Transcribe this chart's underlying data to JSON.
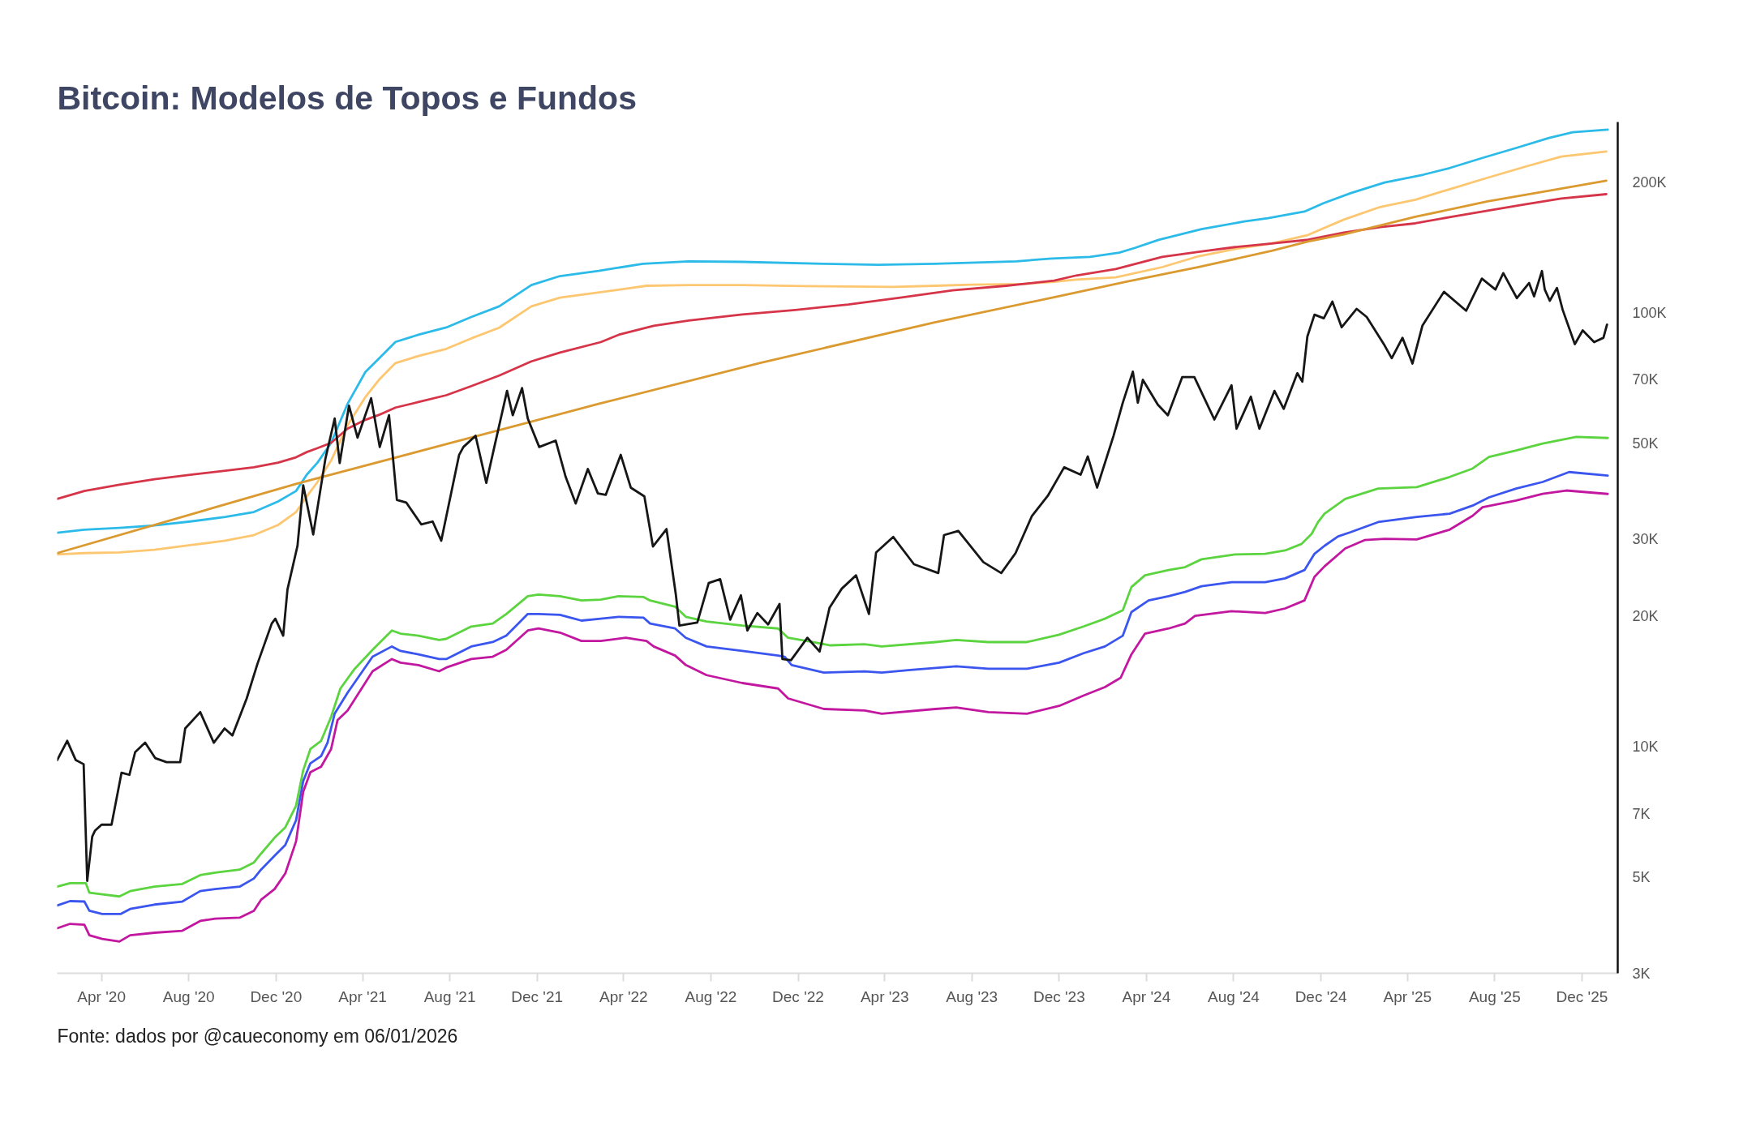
{
  "chart_data": {
    "type": "line",
    "title": "Bitcoin: Modelos de Topos e Fundos",
    "annotations": [
      "Fonte: dados por @caueconomy em 06/01/2026"
    ],
    "log": "y",
    "xlim": [
      "2020-01-30",
      "2026-01-20"
    ],
    "xticks": [
      {
        "value": "2020-04-01",
        "label": "Apr '20"
      },
      {
        "value": "2020-08-01",
        "label": "Aug '20"
      },
      {
        "value": "2020-12-01",
        "label": "Dec '20"
      },
      {
        "value": "2021-04-01",
        "label": "Apr '21"
      },
      {
        "value": "2021-08-01",
        "label": "Aug '21"
      },
      {
        "value": "2021-12-01",
        "label": "Dec '21"
      },
      {
        "value": "2022-04-01",
        "label": "Apr '22"
      },
      {
        "value": "2022-08-01",
        "label": "Aug '22"
      },
      {
        "value": "2022-12-01",
        "label": "Dec '22"
      },
      {
        "value": "2023-04-01",
        "label": "Apr '23"
      },
      {
        "value": "2023-08-01",
        "label": "Aug '23"
      },
      {
        "value": "2023-12-01",
        "label": "Dec '23"
      },
      {
        "value": "2024-04-01",
        "label": "Apr '24"
      },
      {
        "value": "2024-08-01",
        "label": "Aug '24"
      },
      {
        "value": "2024-12-01",
        "label": "Dec '24"
      },
      {
        "value": "2025-04-01",
        "label": "Apr '25"
      },
      {
        "value": "2025-08-01",
        "label": "Aug '25"
      },
      {
        "value": "2025-12-01",
        "label": "Dec '25"
      }
    ],
    "ylim": [
      3000,
      275000
    ],
    "yticks": [
      {
        "value": 3000,
        "label": "3K"
      },
      {
        "value": 5000,
        "label": "5K"
      },
      {
        "value": 7000,
        "label": "7K"
      },
      {
        "value": 10000,
        "label": "10K"
      },
      {
        "value": 20000,
        "label": "20K"
      },
      {
        "value": 30000,
        "label": "30K"
      },
      {
        "value": 50000,
        "label": "50K"
      },
      {
        "value": 70000,
        "label": "70K"
      },
      {
        "value": 100000,
        "label": "100K"
      },
      {
        "value": 200000,
        "label": "200K"
      }
    ],
    "series": [
      {
        "color": "#2cbbe8",
        "x": [
          "2020-01-30",
          "2020-03-08",
          "2020-04-26",
          "2020-06-14",
          "2020-08-03",
          "2020-09-21",
          "2020-10-31",
          "2020-12-04",
          "2020-12-29",
          "2021-01-13",
          "2021-01-28",
          "2021-02-16",
          "2021-03-11",
          "2021-04-05",
          "2021-04-25",
          "2021-05-17",
          "2021-06-18",
          "2021-07-27",
          "2021-08-31",
          "2021-10-09",
          "2021-11-23",
          "2022-01-02",
          "2022-02-25",
          "2022-04-28",
          "2022-07-01",
          "2022-09-14",
          "2023-01-05",
          "2023-03-23",
          "2023-06-10",
          "2023-10-02",
          "2023-11-21",
          "2024-01-13",
          "2024-02-23",
          "2024-03-16",
          "2024-04-18",
          "2024-06-17",
          "2024-08-16",
          "2024-09-18",
          "2024-11-08",
          "2024-12-05",
          "2025-01-12",
          "2025-02-28",
          "2025-04-23",
          "2025-05-30",
          "2025-07-15",
          "2025-08-31",
          "2025-10-16",
          "2025-11-18",
          "2026-01-06"
        ],
        "values": [
          31100,
          31600,
          31900,
          32300,
          33000,
          33800,
          34700,
          36700,
          38800,
          42300,
          45100,
          50100,
          61600,
          73000,
          78700,
          85600,
          88900,
          92400,
          97700,
          103400,
          115700,
          121400,
          124800,
          129600,
          131300,
          130900,
          129600,
          128900,
          129600,
          131300,
          133300,
          134400,
          137500,
          141000,
          147100,
          155700,
          162200,
          165100,
          171000,
          178800,
          188600,
          199500,
          207900,
          215400,
          227300,
          239600,
          252700,
          260400,
          264200
        ]
      },
      {
        "color": "#fdc771",
        "x": [
          "2020-01-30",
          "2020-03-08",
          "2020-04-26",
          "2020-06-14",
          "2020-08-03",
          "2020-09-21",
          "2020-10-31",
          "2020-12-04",
          "2020-12-29",
          "2021-01-13",
          "2021-01-28",
          "2021-02-16",
          "2021-03-11",
          "2021-04-05",
          "2021-04-25",
          "2021-05-17",
          "2021-06-18",
          "2021-07-27",
          "2021-08-31",
          "2021-10-09",
          "2021-11-23",
          "2022-01-02",
          "2022-02-28",
          "2022-03-25",
          "2022-05-03",
          "2022-07-01",
          "2022-09-14",
          "2022-12-07",
          "2023-04-13",
          "2023-06-10",
          "2023-07-30",
          "2023-10-12",
          "2023-11-24",
          "2023-12-25",
          "2024-02-18",
          "2024-04-23",
          "2024-06-13",
          "2024-08-03",
          "2024-09-23",
          "2024-11-13",
          "2025-01-02",
          "2025-02-22",
          "2025-04-12",
          "2025-06-02",
          "2025-07-22",
          "2025-09-12",
          "2025-11-02",
          "2026-01-04"
        ],
        "values": [
          27700,
          27900,
          28000,
          28400,
          29100,
          29800,
          30700,
          32400,
          34700,
          37700,
          40700,
          45600,
          55000,
          63900,
          70300,
          76500,
          79400,
          82500,
          87200,
          92300,
          103400,
          108300,
          111500,
          112900,
          115300,
          115700,
          115700,
          115100,
          114600,
          115300,
          116000,
          116400,
          117800,
          119100,
          120600,
          127300,
          134900,
          140200,
          144300,
          151000,
          163800,
          175200,
          182100,
          193200,
          204600,
          216800,
          229000,
          235200
        ]
      },
      {
        "color": "#d63549",
        "x": [
          "2020-01-30",
          "2020-03-08",
          "2020-04-26",
          "2020-06-14",
          "2020-08-03",
          "2020-09-21",
          "2020-10-31",
          "2020-12-04",
          "2020-12-29",
          "2021-01-13",
          "2021-01-28",
          "2021-02-16",
          "2021-03-11",
          "2021-04-05",
          "2021-04-25",
          "2021-05-17",
          "2021-06-18",
          "2021-07-27",
          "2021-08-31",
          "2021-10-09",
          "2021-11-23",
          "2022-01-02",
          "2022-02-28",
          "2022-03-25",
          "2022-05-13",
          "2022-07-01",
          "2022-09-14",
          "2022-11-27",
          "2023-02-09",
          "2023-04-23",
          "2023-07-05",
          "2023-09-18",
          "2023-11-24",
          "2023-12-25",
          "2024-02-18",
          "2024-04-23",
          "2024-06-13",
          "2024-08-03",
          "2024-09-23",
          "2024-11-13",
          "2025-01-02",
          "2025-02-22",
          "2025-04-12",
          "2025-06-02",
          "2025-07-22",
          "2025-09-12",
          "2025-11-02",
          "2026-01-04"
        ],
        "values": [
          37200,
          38800,
          40100,
          41300,
          42300,
          43200,
          44000,
          45100,
          46400,
          47700,
          48700,
          50100,
          54000,
          56600,
          58200,
          60400,
          62200,
          64500,
          67700,
          71600,
          77200,
          80900,
          85500,
          88900,
          93200,
          95900,
          99000,
          101400,
          104400,
          108300,
          112500,
          115300,
          118500,
          121800,
          126000,
          134400,
          138100,
          141600,
          144300,
          147200,
          153000,
          157500,
          160600,
          166300,
          171800,
          177600,
          183300,
          187500
        ]
      },
      {
        "color": "#db9a30",
        "x": [
          "2020-01-30",
          "2020-12-29",
          "2021-08-01",
          "2022-02-25",
          "2022-10-08",
          "2023-06-10",
          "2023-11-24",
          "2024-03-03",
          "2024-06-13",
          "2024-09-23",
          "2024-11-13",
          "2025-01-02",
          "2025-04-12",
          "2025-07-22",
          "2025-11-02",
          "2026-01-04"
        ],
        "values": [
          27900,
          40300,
          50000,
          61600,
          76500,
          95000,
          108500,
          117800,
          127300,
          138800,
          145800,
          151500,
          166300,
          180400,
          193200,
          201400
        ]
      },
      {
        "color": "#5bd43f",
        "x": [
          "2020-01-30",
          "2020-02-17",
          "2020-03-10",
          "2020-03-15",
          "2020-04-02",
          "2020-04-26",
          "2020-05-11",
          "2020-06-14",
          "2020-07-23",
          "2020-08-17",
          "2020-09-07",
          "2020-10-11",
          "2020-10-31",
          "2020-11-10",
          "2020-11-29",
          "2020-12-14",
          "2020-12-29",
          "2021-01-08",
          "2021-01-18",
          "2021-02-02",
          "2021-02-16",
          "2021-03-01",
          "2021-03-21",
          "2021-04-15",
          "2021-05-12",
          "2021-05-24",
          "2021-06-18",
          "2021-07-17",
          "2021-07-27",
          "2021-08-31",
          "2021-09-30",
          "2021-10-19",
          "2021-11-18",
          "2021-12-03",
          "2022-01-02",
          "2022-02-01",
          "2022-02-28",
          "2022-03-25",
          "2022-04-29",
          "2022-05-08",
          "2022-06-12",
          "2022-06-27",
          "2022-07-26",
          "2022-09-14",
          "2022-11-03",
          "2022-11-17",
          "2022-12-21",
          "2023-01-15",
          "2023-03-04",
          "2023-03-28",
          "2023-06-11",
          "2023-07-10",
          "2023-08-24",
          "2023-10-17",
          "2023-12-01",
          "2024-01-04",
          "2024-02-03",
          "2024-02-28",
          "2024-03-11",
          "2024-03-30",
          "2024-05-02",
          "2024-05-25",
          "2024-06-17",
          "2024-08-03",
          "2024-09-14",
          "2024-10-12",
          "2024-11-04",
          "2024-11-18",
          "2024-11-27",
          "2024-12-06",
          "2025-01-04",
          "2025-02-19",
          "2025-04-14",
          "2025-05-30",
          "2025-07-01",
          "2025-07-24",
          "2025-08-31",
          "2025-10-07",
          "2025-11-23",
          "2026-01-06"
        ],
        "values": [
          4750,
          4840,
          4840,
          4600,
          4560,
          4510,
          4640,
          4750,
          4820,
          5050,
          5120,
          5200,
          5400,
          5660,
          6160,
          6510,
          7300,
          8810,
          9860,
          10300,
          11700,
          13600,
          15100,
          16700,
          18500,
          18200,
          18000,
          17600,
          17700,
          18900,
          19200,
          20200,
          22200,
          22400,
          22200,
          21700,
          21800,
          22200,
          22100,
          21700,
          21000,
          19900,
          19400,
          19000,
          18700,
          17800,
          17400,
          17100,
          17200,
          17000,
          17400,
          17600,
          17400,
          17400,
          18100,
          18900,
          19700,
          20600,
          23300,
          24800,
          25500,
          25900,
          27000,
          27700,
          27800,
          28300,
          29300,
          30900,
          32900,
          34400,
          37200,
          39300,
          39600,
          41800,
          43700,
          46500,
          48100,
          49900,
          51700,
          51400
        ]
      },
      {
        "color": "#3b56ee",
        "x": [
          "2020-01-30",
          "2020-02-17",
          "2020-03-08",
          "2020-03-15",
          "2020-04-02",
          "2020-04-28",
          "2020-05-11",
          "2020-06-14",
          "2020-07-23",
          "2020-08-17",
          "2020-09-07",
          "2020-10-11",
          "2020-10-31",
          "2020-11-10",
          "2020-11-29",
          "2020-12-14",
          "2020-12-29",
          "2021-01-08",
          "2021-01-18",
          "2021-02-02",
          "2021-02-11",
          "2021-02-21",
          "2021-03-11",
          "2021-04-15",
          "2021-05-12",
          "2021-05-24",
          "2021-06-18",
          "2021-07-17",
          "2021-07-27",
          "2021-08-31",
          "2021-09-30",
          "2021-10-19",
          "2021-11-18",
          "2021-12-03",
          "2022-01-02",
          "2022-02-01",
          "2022-02-28",
          "2022-03-25",
          "2022-04-29",
          "2022-05-08",
          "2022-06-12",
          "2022-06-27",
          "2022-07-26",
          "2022-09-14",
          "2022-11-03",
          "2022-11-12",
          "2022-11-22",
          "2023-01-06",
          "2023-03-04",
          "2023-03-28",
          "2023-05-07",
          "2023-07-10",
          "2023-08-24",
          "2023-10-17",
          "2023-12-01",
          "2024-01-04",
          "2024-02-03",
          "2024-02-28",
          "2024-03-11",
          "2024-04-04",
          "2024-05-02",
          "2024-05-25",
          "2024-06-17",
          "2024-07-29",
          "2024-09-14",
          "2024-10-12",
          "2024-11-08",
          "2024-11-22",
          "2024-12-06",
          "2024-12-25",
          "2025-01-12",
          "2025-02-19",
          "2025-04-14",
          "2025-05-30",
          "2025-07-01",
          "2025-07-24",
          "2025-08-31",
          "2025-10-07",
          "2025-11-13",
          "2026-01-06"
        ],
        "values": [
          4300,
          4400,
          4390,
          4180,
          4110,
          4110,
          4220,
          4320,
          4390,
          4640,
          4690,
          4750,
          4960,
          5200,
          5600,
          5930,
          6760,
          8320,
          9140,
          9500,
          10200,
          11900,
          13300,
          16100,
          17000,
          16600,
          16300,
          15900,
          15900,
          17000,
          17400,
          18000,
          20200,
          20200,
          20100,
          19500,
          19700,
          19900,
          19800,
          19200,
          18700,
          17800,
          17000,
          16600,
          16200,
          16100,
          15400,
          14800,
          14900,
          14800,
          15000,
          15300,
          15100,
          15100,
          15600,
          16400,
          17000,
          18000,
          20400,
          21700,
          22200,
          22700,
          23400,
          23900,
          23900,
          24400,
          25500,
          27800,
          29000,
          30500,
          31200,
          32900,
          33800,
          34400,
          35900,
          37500,
          39300,
          40700,
          42900,
          42100
        ]
      },
      {
        "color": "#c2179f",
        "x": [
          "2020-01-30",
          "2020-02-17",
          "2020-03-08",
          "2020-03-15",
          "2020-04-02",
          "2020-04-26",
          "2020-05-11",
          "2020-06-14",
          "2020-07-23",
          "2020-08-17",
          "2020-09-07",
          "2020-10-11",
          "2020-10-31",
          "2020-11-10",
          "2020-11-29",
          "2020-12-14",
          "2020-12-29",
          "2021-01-08",
          "2021-01-18",
          "2021-02-02",
          "2021-02-16",
          "2021-02-25",
          "2021-03-11",
          "2021-04-15",
          "2021-05-12",
          "2021-05-24",
          "2021-06-18",
          "2021-07-17",
          "2021-07-27",
          "2021-08-31",
          "2021-09-30",
          "2021-10-19",
          "2021-11-18",
          "2021-12-03",
          "2022-01-02",
          "2022-02-01",
          "2022-02-28",
          "2022-04-04",
          "2022-05-03",
          "2022-05-13",
          "2022-06-12",
          "2022-06-27",
          "2022-07-26",
          "2022-09-14",
          "2022-11-03",
          "2022-11-17",
          "2023-01-06",
          "2023-03-04",
          "2023-03-28",
          "2023-06-11",
          "2023-07-10",
          "2023-08-24",
          "2023-10-17",
          "2023-12-01",
          "2024-01-04",
          "2024-02-03",
          "2024-02-25",
          "2024-03-11",
          "2024-03-30",
          "2024-05-02",
          "2024-05-25",
          "2024-06-08",
          "2024-07-29",
          "2024-09-14",
          "2024-10-12",
          "2024-11-08",
          "2024-11-22",
          "2024-12-06",
          "2025-01-04",
          "2025-01-31",
          "2025-02-28",
          "2025-04-14",
          "2025-05-30",
          "2025-07-01",
          "2025-07-15",
          "2025-08-31",
          "2025-10-07",
          "2025-11-09",
          "2026-01-06"
        ],
        "values": [
          3810,
          3900,
          3880,
          3670,
          3600,
          3550,
          3670,
          3720,
          3760,
          3960,
          4010,
          4030,
          4180,
          4430,
          4690,
          5100,
          6040,
          7860,
          8720,
          8980,
          9860,
          11500,
          12100,
          14900,
          15900,
          15600,
          15400,
          14900,
          15200,
          15900,
          16100,
          16700,
          18500,
          18700,
          18300,
          17500,
          17500,
          17800,
          17500,
          17000,
          16200,
          15400,
          14600,
          14000,
          13600,
          12900,
          12200,
          12100,
          11900,
          12200,
          12300,
          12000,
          11900,
          12400,
          13100,
          13700,
          14400,
          16300,
          18200,
          18700,
          19200,
          20000,
          20500,
          20300,
          20800,
          21700,
          24600,
          26000,
          28600,
          29900,
          30100,
          30000,
          31600,
          34000,
          35600,
          36900,
          38200,
          38900,
          38200
        ]
      },
      {
        "color": "#161616",
        "x": [
          "2020-01-30",
          "2020-02-13",
          "2020-02-25",
          "2020-03-07",
          "2020-03-12",
          "2020-03-19",
          "2020-03-23",
          "2020-04-01",
          "2020-04-15",
          "2020-04-29",
          "2020-05-10",
          "2020-05-18",
          "2020-06-01",
          "2020-06-15",
          "2020-07-01",
          "2020-07-20",
          "2020-07-27",
          "2020-08-17",
          "2020-09-05",
          "2020-09-20",
          "2020-10-01",
          "2020-10-21",
          "2020-11-05",
          "2020-11-25",
          "2020-11-30",
          "2020-12-11",
          "2020-12-17",
          "2020-12-31",
          "2021-01-08",
          "2021-01-22",
          "2021-02-08",
          "2021-02-21",
          "2021-02-28",
          "2021-03-13",
          "2021-03-25",
          "2021-04-13",
          "2021-04-25",
          "2021-05-08",
          "2021-05-19",
          "2021-06-01",
          "2021-06-22",
          "2021-07-08",
          "2021-07-20",
          "2021-08-14",
          "2021-08-20",
          "2021-09-06",
          "2021-09-21",
          "2021-10-01",
          "2021-10-20",
          "2021-10-28",
          "2021-11-10",
          "2021-11-18",
          "2021-12-04",
          "2021-12-27",
          "2022-01-10",
          "2022-01-24",
          "2022-02-10",
          "2022-02-24",
          "2022-03-07",
          "2022-03-28",
          "2022-04-11",
          "2022-04-30",
          "2022-05-12",
          "2022-05-31",
          "2022-06-13",
          "2022-06-18",
          "2022-07-13",
          "2022-07-29",
          "2022-08-14",
          "2022-08-28",
          "2022-09-12",
          "2022-09-21",
          "2022-10-05",
          "2022-10-20",
          "2022-11-05",
          "2022-11-09",
          "2022-11-21",
          "2022-12-14",
          "2022-12-31",
          "2023-01-14",
          "2023-01-31",
          "2023-02-20",
          "2023-03-10",
          "2023-03-20",
          "2023-04-13",
          "2023-05-12",
          "2023-06-15",
          "2023-06-23",
          "2023-07-13",
          "2023-08-17",
          "2023-09-11",
          "2023-10-01",
          "2023-10-24",
          "2023-11-15",
          "2023-12-08",
          "2023-12-31",
          "2024-01-10",
          "2024-01-23",
          "2024-02-15",
          "2024-02-28",
          "2024-03-13",
          "2024-03-20",
          "2024-03-27",
          "2024-04-17",
          "2024-05-01",
          "2024-05-21",
          "2024-06-07",
          "2024-07-05",
          "2024-07-29",
          "2024-08-05",
          "2024-08-25",
          "2024-09-06",
          "2024-09-27",
          "2024-10-10",
          "2024-10-29",
          "2024-11-05",
          "2024-11-12",
          "2024-11-22",
          "2024-12-05",
          "2024-12-17",
          "2024-12-30",
          "2025-01-20",
          "2025-02-03",
          "2025-02-28",
          "2025-03-10",
          "2025-03-25",
          "2025-04-08",
          "2025-04-22",
          "2025-05-22",
          "2025-06-22",
          "2025-07-14",
          "2025-08-02",
          "2025-08-13",
          "2025-09-01",
          "2025-09-18",
          "2025-09-25",
          "2025-10-06",
          "2025-10-10",
          "2025-10-17",
          "2025-10-27",
          "2025-11-04",
          "2025-11-21",
          "2025-12-02",
          "2025-12-18",
          "2025-12-31",
          "2026-01-05"
        ],
        "values": [
          9300,
          10300,
          9300,
          9100,
          4900,
          6200,
          6400,
          6600,
          6600,
          8700,
          8600,
          9700,
          10200,
          9400,
          9200,
          9200,
          11000,
          12000,
          10200,
          11000,
          10600,
          12900,
          15500,
          19200,
          19700,
          18000,
          23000,
          29000,
          40000,
          30800,
          46000,
          57000,
          45000,
          61000,
          51500,
          63500,
          49000,
          58000,
          37000,
          36500,
          32500,
          33000,
          29800,
          47000,
          49000,
          52000,
          40500,
          48000,
          66000,
          58000,
          67000,
          57000,
          49000,
          50700,
          41800,
          36300,
          43600,
          38300,
          38000,
          47000,
          39500,
          37700,
          28900,
          31700,
          22400,
          19000,
          19300,
          23800,
          24300,
          19600,
          22300,
          18500,
          20300,
          19100,
          21300,
          15900,
          15800,
          17800,
          16550,
          20900,
          23100,
          24800,
          20200,
          28000,
          30400,
          26300,
          25100,
          30700,
          31400,
          26600,
          25100,
          27900,
          34000,
          37800,
          44000,
          42300,
          46600,
          39500,
          52000,
          62000,
          73100,
          62000,
          70000,
          61300,
          58000,
          71000,
          71000,
          56700,
          68000,
          54000,
          64000,
          54000,
          66000,
          60000,
          72500,
          69300,
          88000,
          98900,
          97000,
          106000,
          92500,
          102000,
          97700,
          84000,
          78500,
          87500,
          76300,
          93400,
          111700,
          101000,
          119800,
          113000,
          123300,
          108000,
          117000,
          109000,
          124700,
          113000,
          106500,
          114000,
          101500,
          84600,
          91000,
          85500,
          87500,
          93800
        ]
      }
    ]
  }
}
